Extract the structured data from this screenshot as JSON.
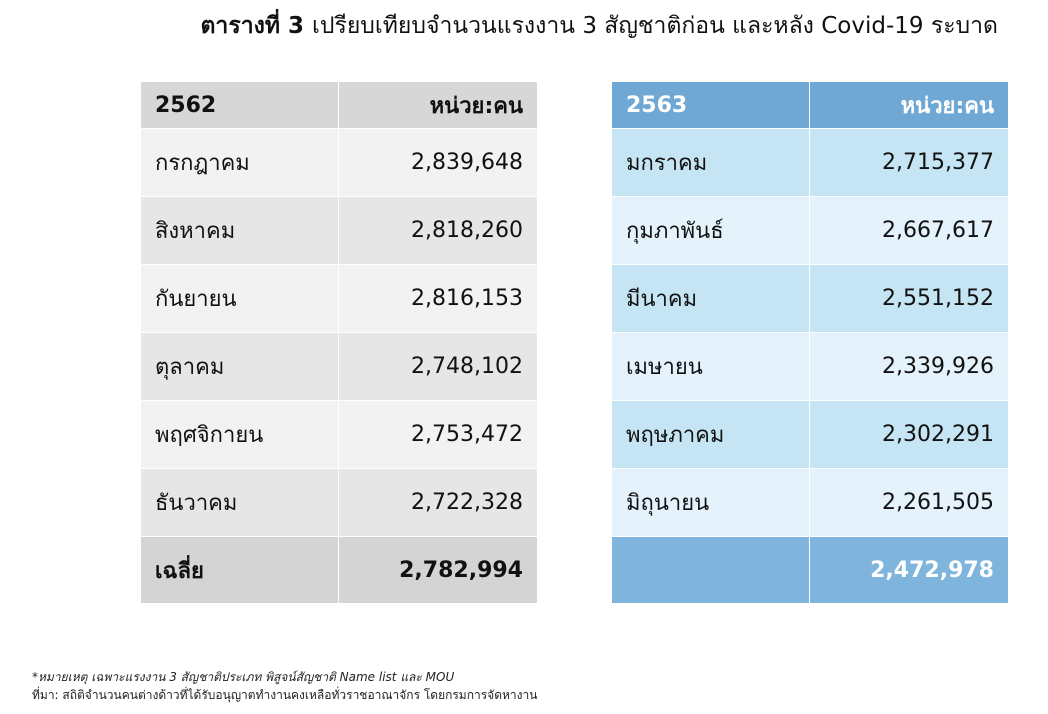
{
  "title": {
    "bold": "ตารางที่ 3",
    "text": "เปรียบเทียบจำนวนแรงงาน 3 สัญชาติก่อน และหลัง Covid-19 ระบาด"
  },
  "table_2562": {
    "year": "2562",
    "unit": "หน่วย:คน",
    "rows": [
      {
        "month": "กรกฎาคม",
        "value": "2,839,648"
      },
      {
        "month": "สิงหาคม",
        "value": "2,818,260"
      },
      {
        "month": "กันยายน",
        "value": "2,816,153"
      },
      {
        "month": "ตุลาคม",
        "value": "2,748,102"
      },
      {
        "month": "พฤศจิกายน",
        "value": "2,753,472"
      },
      {
        "month": "ธันวาคม",
        "value": "2,722,328"
      }
    ],
    "avg_label": "เฉลี่ย",
    "avg_value": "2,782,994"
  },
  "table_2563": {
    "year": "2563",
    "unit": "หน่วย:คน",
    "rows": [
      {
        "month": "มกราคม",
        "value": "2,715,377"
      },
      {
        "month": "กุมภาพันธ์",
        "value": "2,667,617"
      },
      {
        "month": "มีนาคม",
        "value": "2,551,152"
      },
      {
        "month": "เมษายน",
        "value": "2,339,926"
      },
      {
        "month": "พฤษภาคม",
        "value": "2,302,291"
      },
      {
        "month": "มิถุนายน",
        "value": "2,261,505"
      }
    ],
    "avg_label": "",
    "avg_value": "2,472,978"
  },
  "notes": {
    "remark": "*หมายเหตุ เฉพาะแรงงาน 3 สัญชาติประเภท พิสูจน์สัญชาติ Name list และ MOU",
    "source": "ที่มา: สถิติจำนวนคนต่างด้าวที่ได้รับอนุญาตทำงานคงเหลือทั่วราชอาณาจักร โดยกรมการจัดหางาน"
  },
  "colors": {
    "gray_header": "#d7d7d7",
    "gray_row_a": "#e6e6e6",
    "gray_row_b": "#f2f2f2",
    "blue_header": "#6fa8d5",
    "blue_row_a": "#e4f3fb",
    "blue_row_b": "#c6e5f4",
    "blue_footer": "#7fb4dc"
  }
}
